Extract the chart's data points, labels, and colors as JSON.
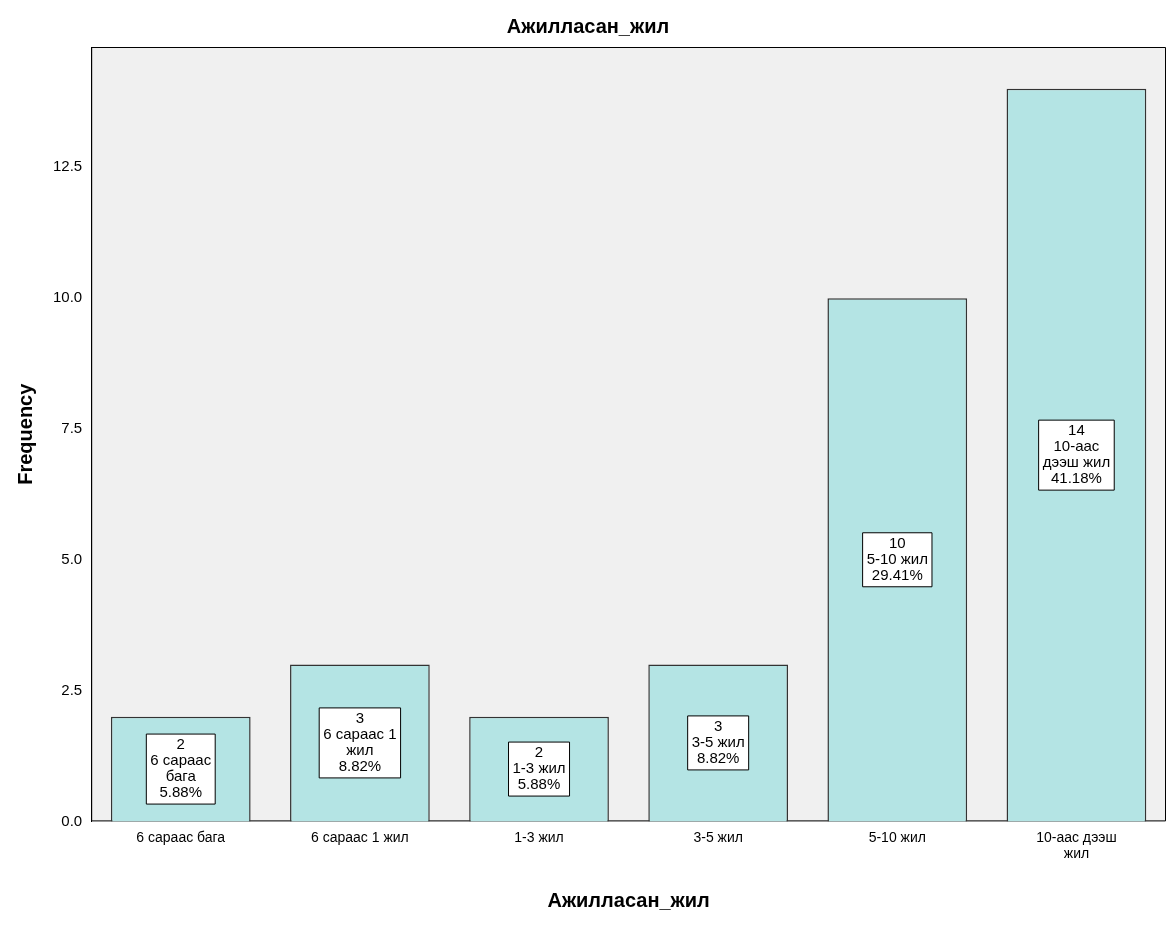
{
  "chart_data": {
    "type": "bar",
    "title": "Ажилласан_жил",
    "xlabel": "Ажилласан_жил",
    "ylabel": "Frequency",
    "categories": [
      "6 сараас бага",
      "6 сараас 1 жил",
      "1-3 жил",
      "3-5 жил",
      "5-10 жил",
      "10-аас дээш жил"
    ],
    "values": [
      2,
      3,
      2,
      3,
      10,
      14
    ],
    "color": "#b4e4e4",
    "value_labels": [
      "2\n6 сараас\nбага\n5.88%",
      "3\n6 сараас 1\nжил\n8.82%",
      "2\n1-3 жил\n5.88%",
      "3\n3-5 жил\n8.82%",
      "10\n5-10 жил\n29.41%",
      "14\n10-аас\nдээш жил\n41.18%"
    ],
    "ylim": [
      0,
      14.8
    ],
    "yticks": [
      {
        "value": 0,
        "label": "0.0"
      },
      {
        "value": 2.5,
        "label": "2.5"
      },
      {
        "value": 5,
        "label": "5.0"
      },
      {
        "value": 7.5,
        "label": "7.5"
      },
      {
        "value": 10,
        "label": "10.0"
      },
      {
        "value": 12.5,
        "label": "12.5"
      }
    ],
    "grid": false,
    "legend": false
  }
}
